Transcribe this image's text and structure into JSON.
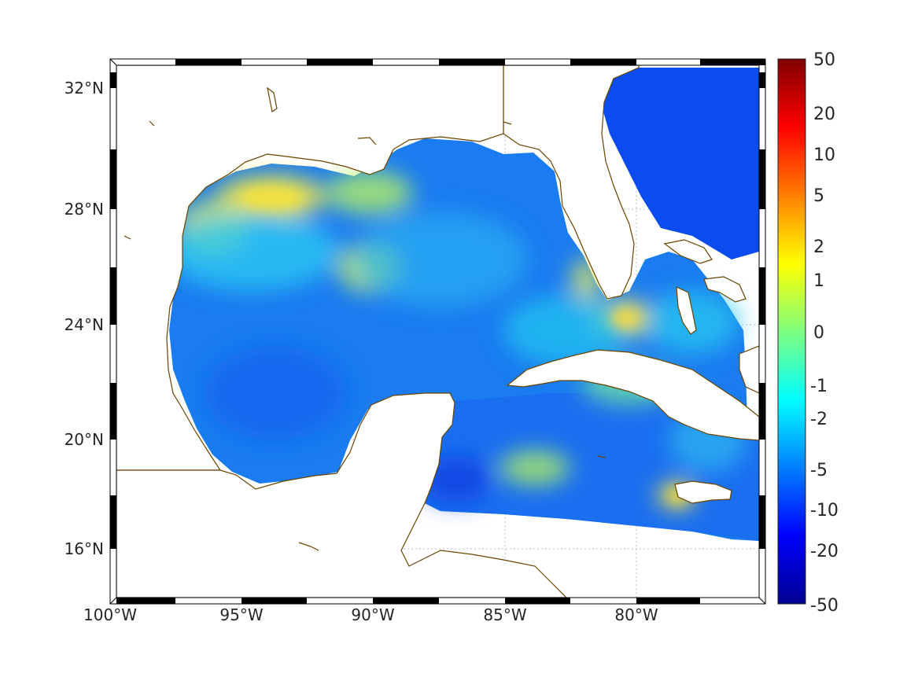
{
  "map": {
    "longitude_labels": [
      "100°W",
      "95°W",
      "90°W",
      "85°W",
      "80°W"
    ],
    "latitude_labels": [
      "32°N",
      "28°N",
      "24°N",
      "20°N",
      "16°N"
    ],
    "coastline_color": "#6b4300",
    "land_color": "#ffffff",
    "grid_lines": true
  },
  "colorbar": {
    "colormap": "jet",
    "scale": "nonlinear",
    "tick_labels": [
      "50",
      "20",
      "10",
      "5",
      "2",
      "1",
      "0",
      "-1",
      "-2",
      "-5",
      "-10",
      "-20",
      "-50"
    ],
    "range": [
      -50,
      50
    ]
  }
}
